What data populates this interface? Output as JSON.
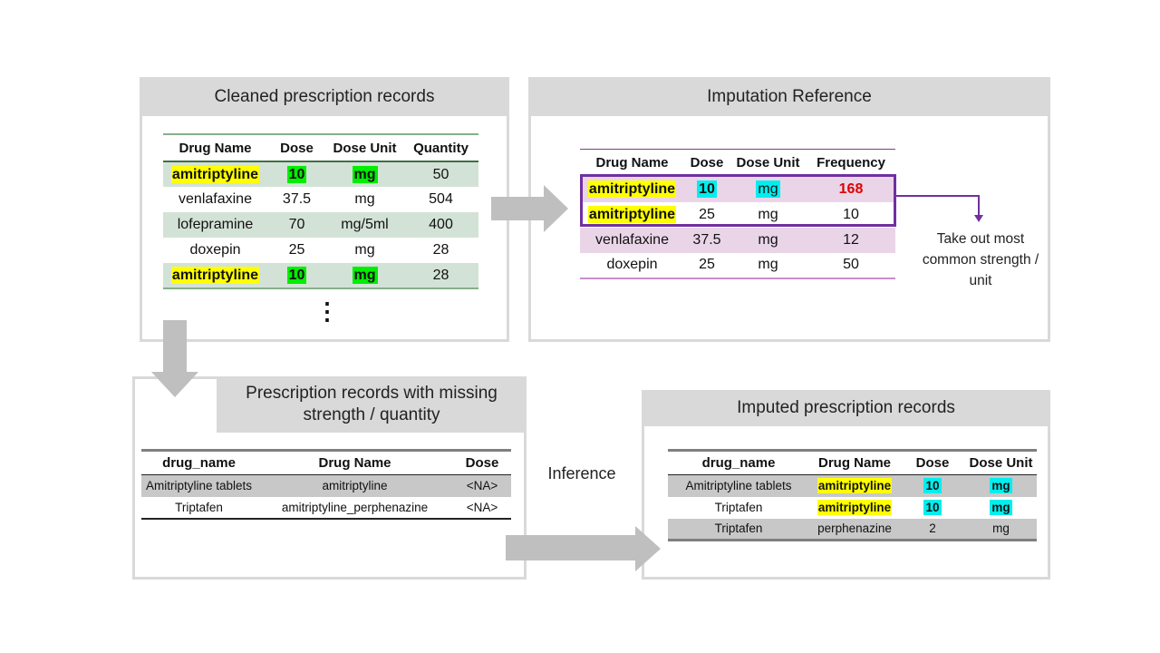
{
  "panel_cleaned": {
    "title": "Cleaned prescription records",
    "headers": [
      "Drug Name",
      "Dose",
      "Dose Unit",
      "Quantity"
    ],
    "rows": [
      [
        "amitriptyline",
        "10",
        "mg",
        "50"
      ],
      [
        "venlafaxine",
        "37.5",
        "mg",
        "504"
      ],
      [
        "lofepramine",
        "70",
        "mg/5ml",
        "400"
      ],
      [
        "doxepin",
        "25",
        "mg",
        "28"
      ],
      [
        "amitriptyline",
        "10",
        "mg",
        "28"
      ]
    ],
    "ellipsis": "⋮"
  },
  "panel_reference": {
    "title": "Imputation Reference",
    "headers": [
      "Drug Name",
      "Dose",
      "Dose Unit",
      "Frequency"
    ],
    "rows": [
      [
        "amitriptyline",
        "10",
        "mg",
        "168"
      ],
      [
        "amitriptyline",
        "25",
        "mg",
        "10"
      ],
      [
        "venlafaxine",
        "37.5",
        "mg",
        "12"
      ],
      [
        "doxepin",
        "25",
        "mg",
        "50"
      ]
    ],
    "note": "Take out most common strength / unit"
  },
  "panel_missing": {
    "title": "Prescription records with missing strength / quantity",
    "headers": [
      "drug_name",
      "Drug Name",
      "Dose"
    ],
    "rows": [
      [
        "Amitriptyline tablets",
        "amitriptyline",
        "<NA>"
      ],
      [
        "Triptafen",
        "amitriptyline_perphenazine",
        "<NA>"
      ]
    ]
  },
  "inference_label": "Inference",
  "panel_imputed": {
    "title": "Imputed prescription records",
    "headers": [
      "drug_name",
      "Drug Name",
      "Dose",
      "Dose Unit"
    ],
    "rows": [
      [
        "Amitriptyline tablets",
        "amitriptyline",
        "10",
        "mg"
      ],
      [
        "Triptafen",
        "amitriptyline",
        "10",
        "mg"
      ],
      [
        "Triptafen",
        "perphenazine",
        "2",
        "mg"
      ]
    ]
  },
  "colors": {
    "yellow": "#ffff00",
    "green": "#00ee00",
    "cyan": "#00eeee",
    "red": "#e00000",
    "purple": "#7030a0"
  }
}
